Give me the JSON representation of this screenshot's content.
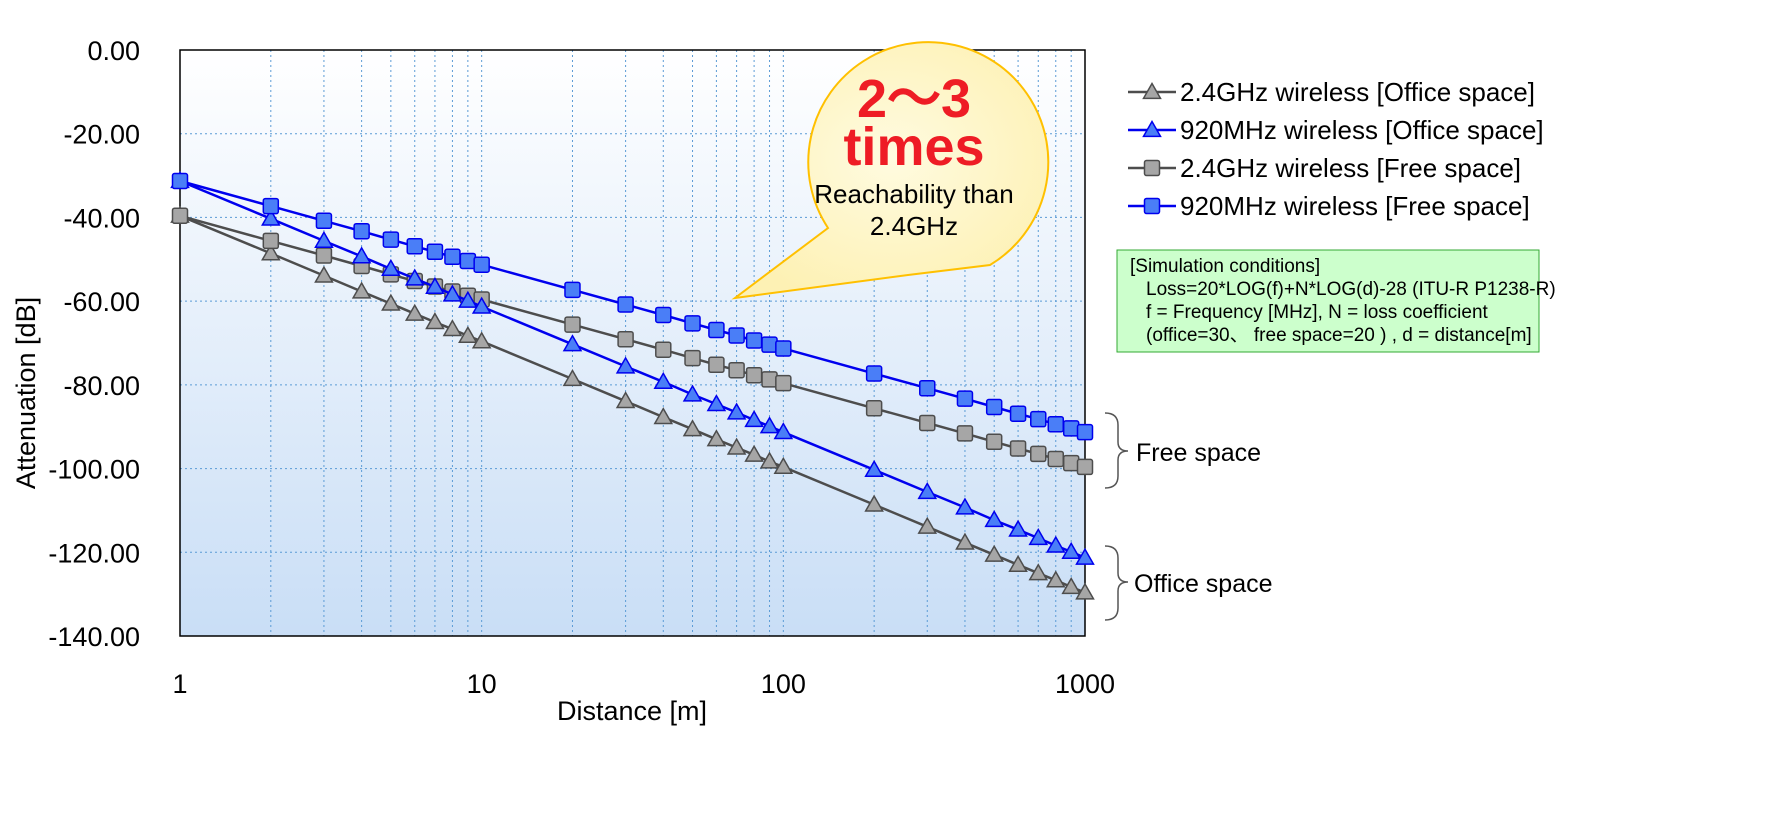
{
  "chart_data": {
    "type": "line",
    "x_scale": "log",
    "x": [
      1,
      2,
      3,
      4,
      5,
      6,
      7,
      8,
      9,
      10,
      20,
      30,
      40,
      50,
      60,
      70,
      80,
      90,
      100,
      200,
      300,
      400,
      500,
      600,
      700,
      800,
      900,
      1000
    ],
    "xlim": [
      1,
      1000
    ],
    "ylim": [
      -140,
      0
    ],
    "xlabel": "Distance [m]",
    "ylabel": "Attenuation [dB]",
    "x_ticks": [
      "1",
      "10",
      "100",
      "1000"
    ],
    "y_ticks": [
      "0.00",
      "-20.00",
      "-40.00",
      "-60.00",
      "-80.00",
      "-100.00",
      "-120.00",
      "-140.00"
    ],
    "grid": true,
    "legend_position": "right",
    "series": [
      {
        "name": "2.4GHz wireless [Office space]",
        "marker": "triangle",
        "color": "#4d4d4d",
        "fill": "#a6a6a6",
        "values": [
          -39.6,
          -48.6,
          -53.9,
          -57.7,
          -60.6,
          -63.0,
          -65.0,
          -66.7,
          -68.3,
          -69.6,
          -78.6,
          -83.9,
          -87.7,
          -90.6,
          -93.0,
          -95.0,
          -96.7,
          -98.3,
          -99.6,
          -108.6,
          -113.9,
          -117.7,
          -120.6,
          -123.0,
          -125.0,
          -126.7,
          -128.3,
          -129.6
        ]
      },
      {
        "name": "920MHz wireless [Office space]",
        "marker": "triangle",
        "color": "#0000ee",
        "fill": "#4a7ef7",
        "values": [
          -31.3,
          -40.3,
          -45.6,
          -49.3,
          -52.3,
          -54.6,
          -56.6,
          -58.4,
          -59.9,
          -61.3,
          -70.3,
          -75.6,
          -79.3,
          -82.3,
          -84.6,
          -86.6,
          -88.4,
          -89.9,
          -91.3,
          -100.3,
          -105.6,
          -109.3,
          -112.3,
          -114.6,
          -116.6,
          -118.4,
          -119.9,
          -121.3
        ]
      },
      {
        "name": "2.4GHz wireless [Free space]",
        "marker": "square",
        "color": "#4d4d4d",
        "fill": "#a6a6a6",
        "values": [
          -39.6,
          -45.6,
          -49.1,
          -51.6,
          -53.6,
          -55.2,
          -56.5,
          -57.7,
          -58.7,
          -59.6,
          -65.6,
          -69.1,
          -71.6,
          -73.6,
          -75.2,
          -76.5,
          -77.7,
          -78.7,
          -79.6,
          -85.6,
          -89.1,
          -91.6,
          -93.6,
          -95.2,
          -96.5,
          -97.7,
          -98.7,
          -99.6
        ]
      },
      {
        "name": "920MHz wireless [Free space]",
        "marker": "square",
        "color": "#0000ee",
        "fill": "#4a7ef7",
        "values": [
          -31.3,
          -37.3,
          -40.8,
          -43.3,
          -45.3,
          -46.9,
          -48.2,
          -49.4,
          -50.4,
          -51.3,
          -57.3,
          -60.8,
          -63.3,
          -65.3,
          -66.9,
          -68.2,
          -69.4,
          -70.4,
          -71.3,
          -77.3,
          -80.8,
          -83.3,
          -85.3,
          -86.9,
          -88.2,
          -89.4,
          -90.4,
          -91.3
        ]
      }
    ],
    "annotations": {
      "callout_big_line1": "2～3",
      "callout_big_line2": "times",
      "callout_small_line1": "Reachability than",
      "callout_small_line2": "2.4GHz",
      "brace_free": "Free space",
      "brace_office": "Office space"
    },
    "conditions": [
      "[Simulation conditions]",
      "Loss=20*LOG(f)+N*LOG(d)-28  (ITU-R P1238-R)",
      "f = Frequency [MHz], N = loss coefficient",
      "(office=30、 free space=20 ) , d = distance[m]"
    ]
  },
  "colors": {
    "plot_bg_top": "#ffffff",
    "plot_bg_bottom": "#c9def6",
    "grid": "#5b9bd5",
    "callout_fill": "#fdf1b4",
    "callout_edge": "#ffc000",
    "conditions_fill": "#ccffcc",
    "conditions_edge": "#33aa33"
  }
}
